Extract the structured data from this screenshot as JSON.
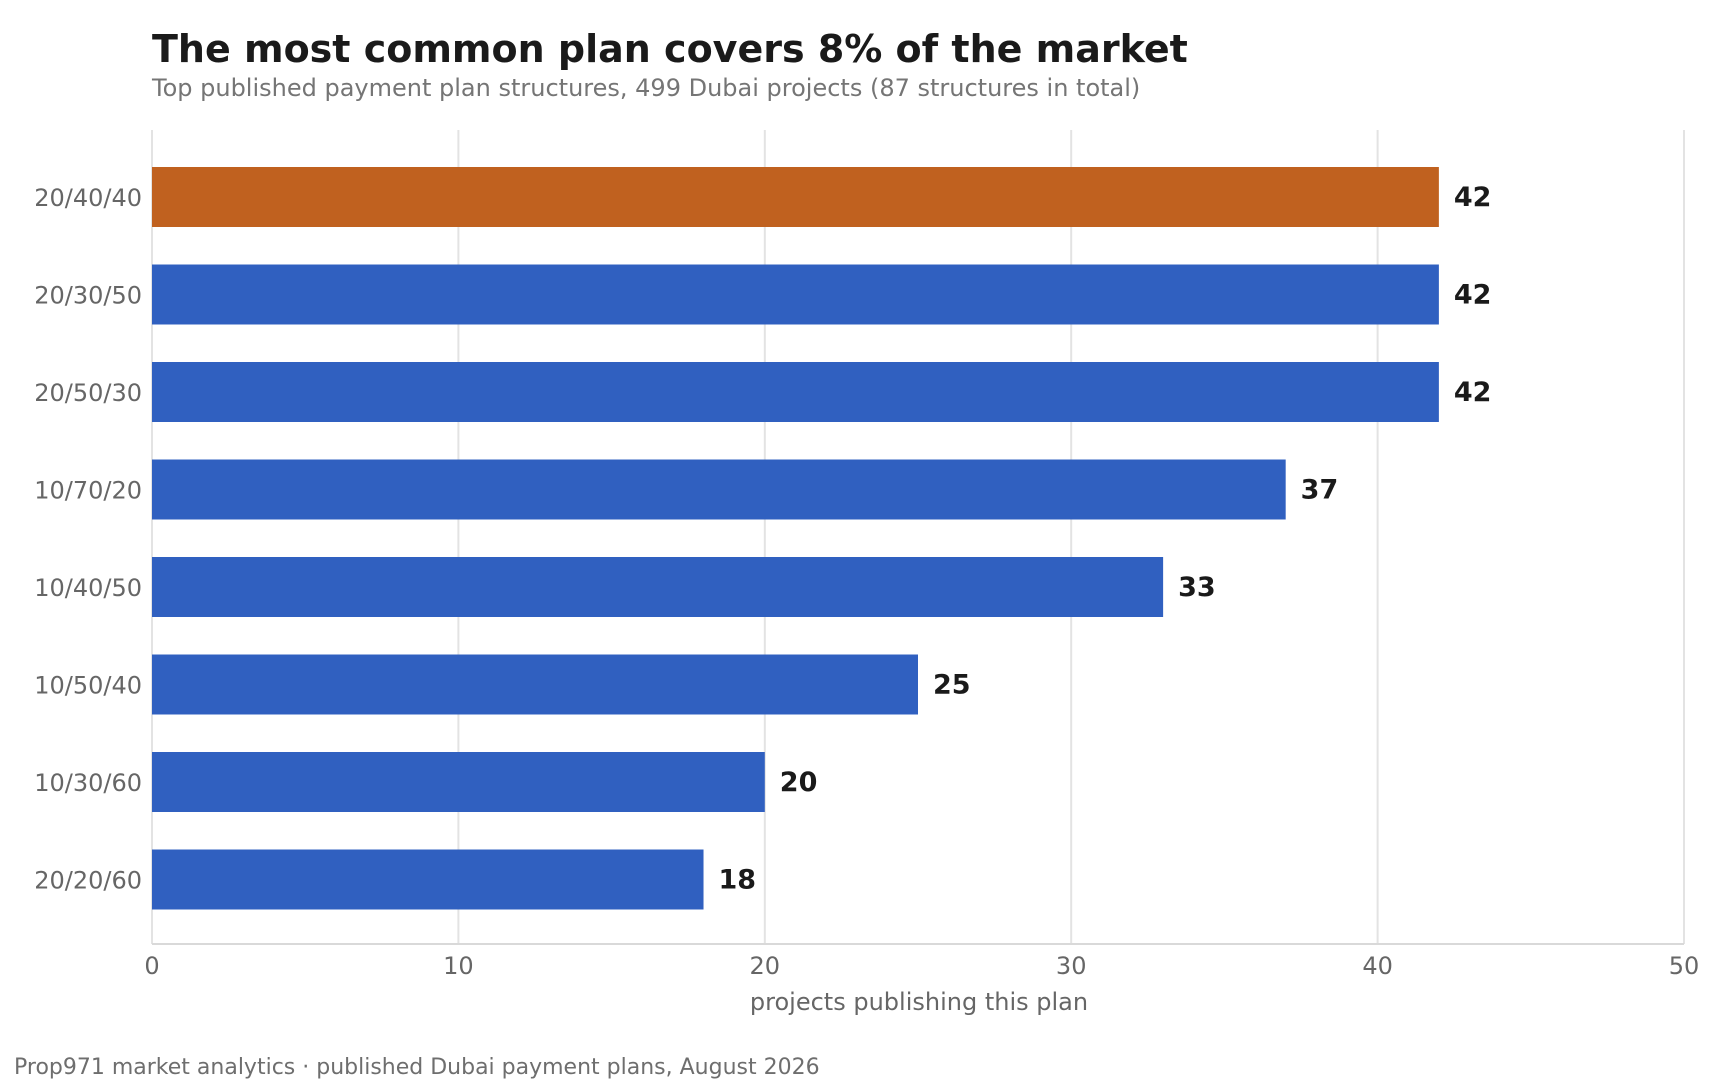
{
  "chart_data": {
    "type": "bar",
    "orientation": "horizontal",
    "title": "The most common plan covers 8% of the market",
    "subtitle": "Top published payment plan structures, 499 Dubai projects (87 structures in total)",
    "xlabel": "projects publishing this plan",
    "ylabel": "",
    "xlim": [
      0,
      50
    ],
    "xticks": [
      0,
      10,
      20,
      30,
      40,
      50
    ],
    "grid": true,
    "categories": [
      "20/40/40",
      "20/30/50",
      "20/50/30",
      "10/70/20",
      "10/40/50",
      "10/50/40",
      "10/30/60",
      "20/20/60"
    ],
    "values": [
      42,
      42,
      42,
      37,
      33,
      25,
      20,
      18
    ],
    "highlight_index": 0,
    "colors": {
      "highlight": "#c0611f",
      "default": "#3060c0"
    }
  },
  "footer": "Prop971 market analytics  ·  published Dubai payment plans, August 2026"
}
